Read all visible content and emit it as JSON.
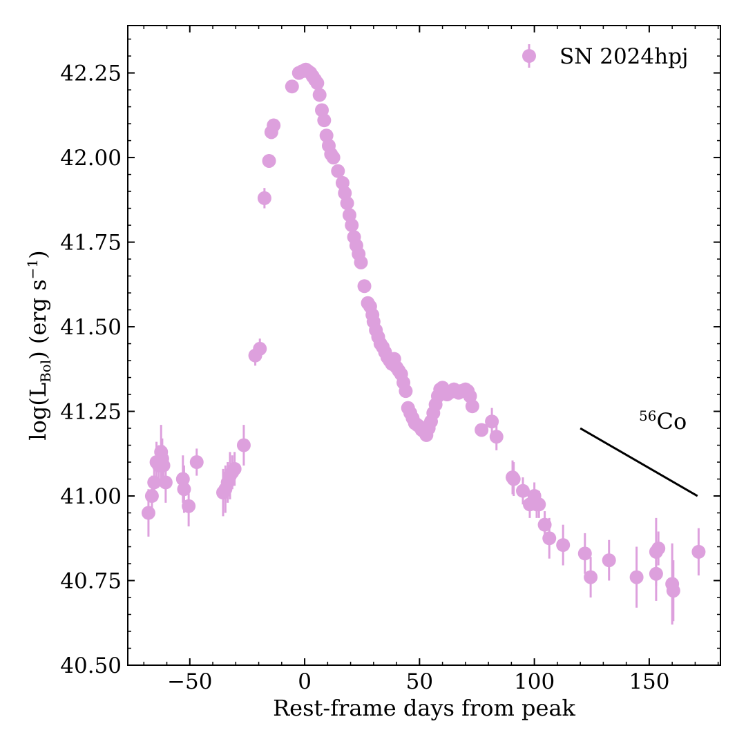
{
  "chart_data": {
    "type": "scatter",
    "title": "",
    "xlabel": "Rest-frame days from peak",
    "ylabel": {
      "prefix": "log(L",
      "subscript": "Bol",
      "middle": ") (erg s",
      "superscript": "−1",
      "suffix": ")"
    },
    "xlim": [
      -77,
      181
    ],
    "ylim": [
      40.5,
      42.39
    ],
    "xticks": [
      -50,
      0,
      50,
      100,
      150
    ],
    "xtick_labels": [
      "−50",
      "0",
      "50",
      "100",
      "150"
    ],
    "yticks": [
      40.5,
      40.75,
      41.0,
      41.25,
      41.5,
      41.75,
      42.0,
      42.25
    ],
    "ytick_labels": [
      "40.50",
      "40.75",
      "41.00",
      "41.25",
      "41.50",
      "41.75",
      "42.00",
      "42.25"
    ],
    "grid": false,
    "legend": {
      "position": "top-right",
      "entries": [
        "SN 2024hpj"
      ]
    },
    "marker_color": "#dda0dd",
    "line_color": "#000000",
    "series": [
      {
        "name": "SN 2024hpj",
        "points": [
          [
            -68,
            40.95,
            0.07
          ],
          [
            -66.5,
            41.0,
            0.06
          ],
          [
            -65.5,
            41.04,
            0.05
          ],
          [
            -64.5,
            41.1,
            0.06
          ],
          [
            -63.5,
            41.09,
            0.06
          ],
          [
            -62.5,
            41.13,
            0.08
          ],
          [
            -62,
            41.11,
            0.06
          ],
          [
            -61.5,
            41.09,
            0.06
          ],
          [
            -60.5,
            41.04,
            0.06
          ],
          [
            -53,
            41.05,
            0.07
          ],
          [
            -52.5,
            41.02,
            0.07
          ],
          [
            -50.5,
            40.97,
            0.06
          ],
          [
            -47,
            41.1,
            0.04
          ],
          [
            -35.5,
            41.01,
            0.07
          ],
          [
            -34.5,
            41.02,
            0.07
          ],
          [
            -33.5,
            41.04,
            0.06
          ],
          [
            -32.5,
            41.06,
            0.07
          ],
          [
            -31.5,
            41.07,
            0.05
          ],
          [
            -30.5,
            41.08,
            0.05
          ],
          [
            -26.5,
            41.15,
            0.06
          ],
          [
            -21.5,
            41.415,
            0.03
          ],
          [
            -19.5,
            41.435,
            0.03
          ],
          [
            -17.5,
            41.88,
            0.03
          ],
          [
            -15.5,
            41.99,
            0.02
          ],
          [
            -14.5,
            42.075,
            0.02
          ],
          [
            -13.5,
            42.095,
            0.02
          ],
          [
            -5.5,
            42.21,
            0.015
          ],
          [
            -2.5,
            42.25,
            0.015
          ],
          [
            -1,
            42.255,
            0.015
          ],
          [
            0.5,
            42.26,
            0.015
          ],
          [
            1.5,
            42.255,
            0.015
          ],
          [
            2.5,
            42.25,
            0.015
          ],
          [
            3.5,
            42.24,
            0.015
          ],
          [
            4.5,
            42.23,
            0.015
          ],
          [
            5.5,
            42.22,
            0.015
          ],
          [
            6.5,
            42.185,
            0.015
          ],
          [
            7.5,
            42.14,
            0.015
          ],
          [
            8.5,
            42.11,
            0.015
          ],
          [
            9.5,
            42.065,
            0.015
          ],
          [
            10.5,
            42.035,
            0.015
          ],
          [
            11.5,
            42.01,
            0.015
          ],
          [
            12.5,
            42.0,
            0.015
          ],
          [
            14.5,
            41.96,
            0.015
          ],
          [
            16.5,
            41.925,
            0.015
          ],
          [
            17.5,
            41.895,
            0.015
          ],
          [
            18.5,
            41.865,
            0.015
          ],
          [
            19.5,
            41.83,
            0.015
          ],
          [
            20.5,
            41.8,
            0.015
          ],
          [
            21.5,
            41.765,
            0.015
          ],
          [
            22.5,
            41.74,
            0.015
          ],
          [
            23.5,
            41.715,
            0.015
          ],
          [
            24.5,
            41.69,
            0.015
          ],
          [
            26,
            41.62,
            0.015
          ],
          [
            27.5,
            41.57,
            0.015
          ],
          [
            28.5,
            41.56,
            0.015
          ],
          [
            29.5,
            41.535,
            0.015
          ],
          [
            30,
            41.515,
            0.015
          ],
          [
            31,
            41.49,
            0.015
          ],
          [
            32,
            41.47,
            0.015
          ],
          [
            33,
            41.45,
            0.015
          ],
          [
            34,
            41.44,
            0.015
          ],
          [
            35,
            41.425,
            0.015
          ],
          [
            36,
            41.41,
            0.02
          ],
          [
            37,
            41.4,
            0.02
          ],
          [
            38,
            41.39,
            0.02
          ],
          [
            39,
            41.405,
            0.02
          ],
          [
            40,
            41.38,
            0.02
          ],
          [
            41,
            41.37,
            0.02
          ],
          [
            42,
            41.36,
            0.02
          ],
          [
            43,
            41.335,
            0.02
          ],
          [
            44,
            41.31,
            0.02
          ],
          [
            45,
            41.26,
            0.02
          ],
          [
            46,
            41.245,
            0.02
          ],
          [
            47,
            41.23,
            0.02
          ],
          [
            48,
            41.215,
            0.02
          ],
          [
            49,
            41.21,
            0.02
          ],
          [
            50,
            41.205,
            0.02
          ],
          [
            51,
            41.195,
            0.02
          ],
          [
            52,
            41.19,
            0.02
          ],
          [
            53,
            41.18,
            0.02
          ],
          [
            54,
            41.2,
            0.02
          ],
          [
            55,
            41.22,
            0.02
          ],
          [
            56,
            41.245,
            0.02
          ],
          [
            57,
            41.27,
            0.02
          ],
          [
            58,
            41.295,
            0.02
          ],
          [
            59,
            41.315,
            0.02
          ],
          [
            60,
            41.32,
            0.02
          ],
          [
            61,
            41.31,
            0.02
          ],
          [
            62,
            41.3,
            0.02
          ],
          [
            63,
            41.305,
            0.02
          ],
          [
            64,
            41.31,
            0.02
          ],
          [
            65,
            41.315,
            0.02
          ],
          [
            66,
            41.31,
            0.02
          ],
          [
            67,
            41.305,
            0.02
          ],
          [
            68,
            41.31,
            0.02
          ],
          [
            69,
            41.31,
            0.02
          ],
          [
            70,
            41.315,
            0.02
          ],
          [
            71,
            41.31,
            0.02
          ],
          [
            72,
            41.295,
            0.02
          ],
          [
            73,
            41.265,
            0.02
          ],
          [
            77,
            41.195,
            0.02
          ],
          [
            81.5,
            41.22,
            0.04
          ],
          [
            83.5,
            41.175,
            0.04
          ],
          [
            90.5,
            41.055,
            0.05
          ],
          [
            91,
            41.05,
            0.05
          ],
          [
            95,
            41.015,
            0.04
          ],
          [
            98,
            40.975,
            0.04
          ],
          [
            100,
            41.0,
            0.04
          ],
          [
            101,
            40.975,
            0.04
          ],
          [
            102,
            40.975,
            0.04
          ],
          [
            104.5,
            40.915,
            0.04
          ],
          [
            106.5,
            40.875,
            0.06
          ],
          [
            112.5,
            40.855,
            0.06
          ],
          [
            122,
            40.83,
            0.06
          ],
          [
            124.5,
            40.76,
            0.06
          ],
          [
            132.5,
            40.81,
            0.06
          ],
          [
            144.5,
            40.76,
            0.09
          ],
          [
            153,
            40.835,
            0.1
          ],
          [
            153,
            40.77,
            0.08
          ],
          [
            154,
            40.845,
            0.05
          ],
          [
            160,
            40.74,
            0.12
          ],
          [
            160.5,
            40.72,
            0.09
          ],
          [
            171.5,
            40.835,
            0.07
          ]
        ]
      }
    ],
    "co56_line": {
      "x": [
        120,
        171
      ],
      "y": [
        41.2,
        41.0
      ]
    },
    "annotations": [
      {
        "label": "Co",
        "superscript": "56",
        "x": 158,
        "y": 41.245
      }
    ]
  }
}
